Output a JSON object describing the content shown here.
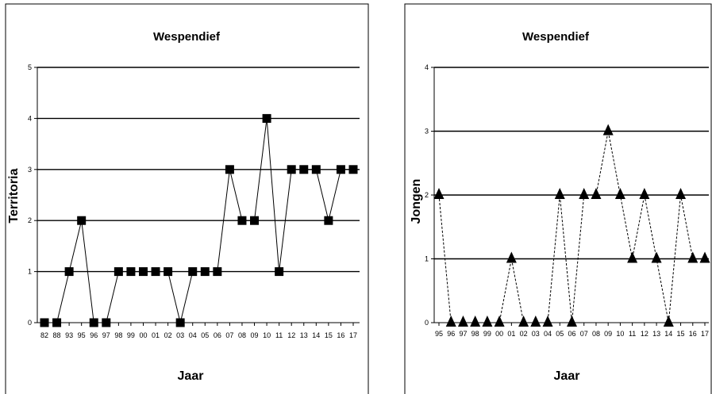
{
  "chart_data": [
    {
      "type": "line",
      "title": "Wespendief",
      "xlabel": "Jaar",
      "ylabel": "Territoria",
      "ylim": [
        0,
        5
      ],
      "yticks": [
        "0",
        "1",
        "2",
        "3",
        "4",
        "5"
      ],
      "grid": true,
      "line_style": "solid",
      "marker": "square",
      "categories": [
        "82",
        "88",
        "93",
        "95",
        "96",
        "97",
        "98",
        "99",
        "00",
        "01",
        "02",
        "03",
        "04",
        "05",
        "06",
        "07",
        "08",
        "09",
        "10",
        "11",
        "12",
        "13",
        "14",
        "15",
        "16",
        "17"
      ],
      "values": [
        0,
        0,
        1,
        2,
        0,
        0,
        1,
        1,
        1,
        1,
        1,
        0,
        1,
        1,
        1,
        3,
        2,
        2,
        4,
        1,
        3,
        3,
        3,
        2,
        3,
        3
      ]
    },
    {
      "type": "line",
      "title": "Wespendief",
      "xlabel": "Jaar",
      "ylabel": "Jongen",
      "ylim": [
        0,
        4
      ],
      "yticks": [
        "0",
        "1",
        "2",
        "3",
        "4"
      ],
      "grid": true,
      "line_style": "dashed",
      "marker": "triangle",
      "categories": [
        "95",
        "96",
        "97",
        "98",
        "99",
        "00",
        "01",
        "02",
        "03",
        "04",
        "05",
        "06",
        "07",
        "08",
        "09",
        "10",
        "11",
        "12",
        "13",
        "14",
        "15",
        "16",
        "17"
      ],
      "values": [
        2,
        0,
        0,
        0,
        0,
        0,
        1,
        0,
        0,
        0,
        2,
        0,
        2,
        2,
        3,
        2,
        1,
        2,
        1,
        0,
        2,
        1,
        1
      ]
    }
  ]
}
